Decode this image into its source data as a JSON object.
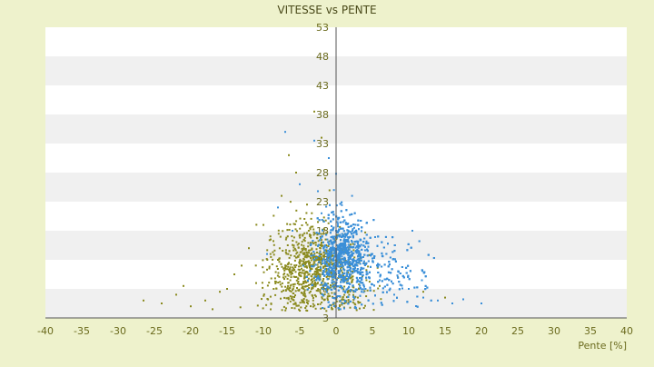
{
  "chart_data": {
    "type": "scatter",
    "title": "VITESSE vs PENTE",
    "xlabel": "Pente [%]",
    "ylabel": "",
    "xlim": [
      -40,
      40
    ],
    "ylim": [
      3,
      53
    ],
    "x_ticks": [
      -40,
      -35,
      -30,
      -25,
      -20,
      -15,
      -10,
      -5,
      0,
      5,
      10,
      15,
      20,
      25,
      30,
      35,
      40
    ],
    "y_ticks": [
      3,
      8,
      13,
      18,
      23,
      28,
      33,
      38,
      43,
      48,
      53
    ],
    "grid": "horizontal alternating bands",
    "legend": "none",
    "colors": {
      "background": "#eef2cc",
      "plot_band_light": "#ffffff",
      "plot_band_dark": "#f0f0f0",
      "tick_label": "#6b6b1e",
      "axis_line": "#555555",
      "series_blue": "#3b8fd8",
      "series_olive": "#8a8a1e"
    },
    "series": [
      {
        "color": "#3b8fd8",
        "points": [
          [
            0.2,
            19.5
          ],
          [
            1.0,
            17.2
          ],
          [
            -0.5,
            13.0
          ],
          [
            0.5,
            15.0
          ],
          [
            2.0,
            11.0
          ],
          [
            -1.2,
            16.5
          ],
          [
            0.8,
            22.4
          ],
          [
            -0.3,
            25.0
          ],
          [
            1.5,
            9.0
          ],
          [
            3.0,
            12.5
          ],
          [
            4.5,
            10.0
          ],
          [
            -2.0,
            21.0
          ],
          [
            0.0,
            27.8
          ],
          [
            -1.0,
            30.5
          ],
          [
            -2.5,
            24.8
          ],
          [
            6.0,
            9.5
          ],
          [
            8.0,
            7.0
          ],
          [
            10.0,
            8.0
          ],
          [
            12.0,
            6.5
          ],
          [
            14.0,
            6.0
          ],
          [
            16.0,
            5.5
          ],
          [
            17.5,
            6.2
          ],
          [
            20.0,
            5.5
          ],
          [
            -3.5,
            15.5
          ],
          [
            -4.5,
            12.0
          ],
          [
            -6.0,
            18.0
          ],
          [
            -7.0,
            35.0
          ],
          [
            -3.0,
            33.5
          ],
          [
            2.5,
            18.5
          ],
          [
            1.2,
            6.0
          ],
          [
            -0.8,
            5.2
          ],
          [
            3.5,
            7.5
          ],
          [
            5.0,
            14.0
          ],
          [
            10.5,
            18.0
          ],
          [
            -5.0,
            26.0
          ],
          [
            -8.0,
            22.0
          ],
          [
            -9.5,
            14.0
          ],
          [
            0.6,
            4.5
          ],
          [
            2.2,
            24.0
          ],
          [
            -1.8,
            8.5
          ]
        ],
        "cluster": {
          "count": 2200,
          "center_x": 0.8,
          "center_y": 14.0,
          "spread_x": 2.6,
          "spread_y": 5.0,
          "skew_right": 4.0
        }
      },
      {
        "color": "#8a8a1e",
        "points": [
          [
            -26.5,
            6.0
          ],
          [
            -24.0,
            5.5
          ],
          [
            -22.0,
            7.0
          ],
          [
            -21.0,
            8.5
          ],
          [
            -20.0,
            5.0
          ],
          [
            -18.0,
            6.0
          ],
          [
            -16.0,
            7.5
          ],
          [
            -15.0,
            8.0
          ],
          [
            -13.0,
            12.0
          ],
          [
            -12.0,
            15.0
          ],
          [
            -11.0,
            9.0
          ],
          [
            -10.0,
            19.0
          ],
          [
            -9.0,
            16.5
          ],
          [
            -8.0,
            13.0
          ],
          [
            -6.5,
            31.0
          ],
          [
            -5.5,
            28.0
          ],
          [
            -4.0,
            22.5
          ],
          [
            -3.0,
            38.5
          ],
          [
            -2.0,
            34.0
          ],
          [
            -1.5,
            27.0
          ],
          [
            0.5,
            5.0
          ],
          [
            3.0,
            6.5
          ],
          [
            6.0,
            8.5
          ],
          [
            8.5,
            10.0
          ],
          [
            12.0,
            7.5
          ],
          [
            15.0,
            6.5
          ],
          [
            -2.5,
            19.5
          ],
          [
            -7.5,
            24.0
          ],
          [
            -14.0,
            10.5
          ],
          [
            -17.0,
            4.5
          ]
        ],
        "cluster": {
          "count": 900,
          "center_x": -3.0,
          "center_y": 12.0,
          "spread_x": 4.5,
          "spread_y": 5.5,
          "skew_right": 0.0
        }
      }
    ]
  }
}
